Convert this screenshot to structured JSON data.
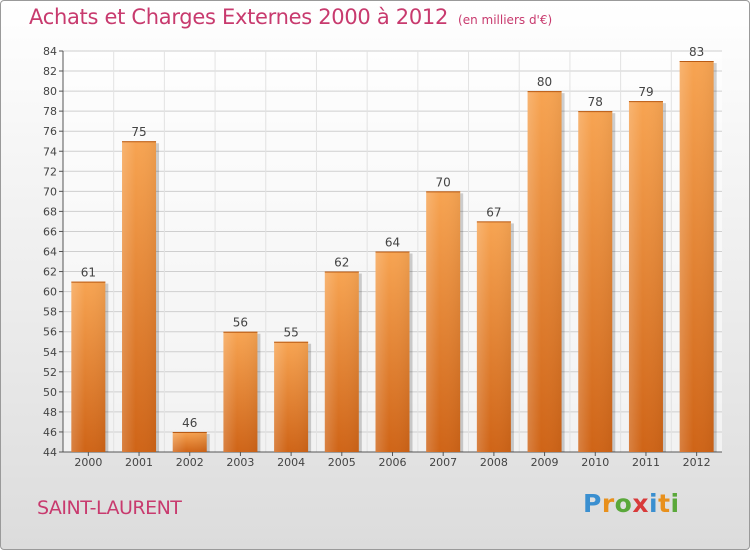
{
  "header": {
    "title": "Achats et Charges Externes 2000 à 2012",
    "subtitle": "(en milliers d'€)"
  },
  "footer": {
    "place": "SAINT-LAURENT",
    "logo": [
      "P",
      "r",
      "o",
      "x",
      "i",
      "t",
      "i"
    ]
  },
  "colors": {
    "title": "#c83a6e",
    "bar_light": "#f7a452",
    "bar_dark": "#cf6417",
    "logo": [
      "#3a8fd0",
      "#e8901c",
      "#5aa83a",
      "#d83a3a",
      "#3a8fd0",
      "#e8901c",
      "#5aa83a"
    ]
  },
  "chart_data": {
    "type": "bar",
    "categories": [
      "2000",
      "2001",
      "2002",
      "2003",
      "2004",
      "2005",
      "2006",
      "2007",
      "2008",
      "2009",
      "2010",
      "2011",
      "2012"
    ],
    "values": [
      61,
      75,
      46,
      56,
      55,
      62,
      64,
      70,
      67,
      80,
      78,
      79,
      83
    ],
    "ylim": [
      44,
      84
    ],
    "yticks": [
      44,
      46,
      48,
      50,
      52,
      54,
      56,
      58,
      60,
      62,
      64,
      66,
      68,
      70,
      72,
      74,
      76,
      78,
      80,
      82,
      84
    ],
    "grid": true,
    "xlabel": "",
    "ylabel": ""
  }
}
